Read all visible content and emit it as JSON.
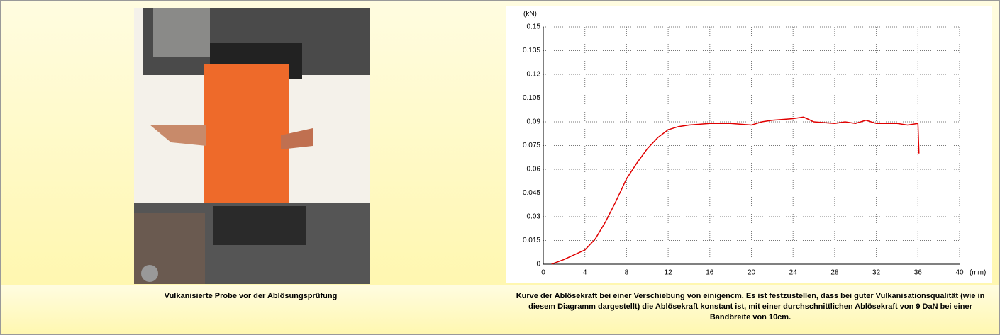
{
  "captions": [
    "Vulkanisierte Probe vor der Ablösungsprüfung",
    "Kurve der Ablösekraft bei einer Verschiebung von einigencm. Es ist festzustellen, dass bei guter Vulkanisationsqualität (wie in diesem Diagramm dargestellt) die Ablösekraft konstant ist, mit einer durchschnittlichen Ablösekraft von 9 DaN bei einer Bandbreite von 10cm."
  ],
  "chart_data": {
    "type": "line",
    "xlabel": "(mm)",
    "ylabel": "(kN)",
    "x": [
      0.8,
      2,
      3,
      4,
      5,
      6,
      7,
      8,
      9,
      10,
      11,
      12,
      13,
      14,
      16,
      18,
      20,
      21,
      22,
      24,
      25,
      26,
      28,
      29,
      30,
      31,
      32,
      34,
      35,
      36,
      36.1
    ],
    "series": [
      {
        "name": "Ablösekraft",
        "color": "#e00000",
        "values": [
          0,
          0.003,
          0.006,
          0.009,
          0.016,
          0.027,
          0.04,
          0.054,
          0.064,
          0.073,
          0.08,
          0.085,
          0.087,
          0.088,
          0.089,
          0.089,
          0.088,
          0.09,
          0.091,
          0.092,
          0.093,
          0.09,
          0.089,
          0.09,
          0.089,
          0.091,
          0.089,
          0.089,
          0.088,
          0.089,
          0.07
        ]
      }
    ],
    "xlim": [
      0,
      40
    ],
    "xticks": [
      0,
      4,
      8,
      12,
      16,
      20,
      24,
      28,
      32,
      36,
      40
    ],
    "ylim": [
      0,
      0.15
    ],
    "yticks": [
      0,
      0.015,
      0.03,
      0.045,
      0.06,
      0.075,
      0.09,
      0.105,
      0.12,
      0.135,
      0.15
    ],
    "grid": true
  }
}
